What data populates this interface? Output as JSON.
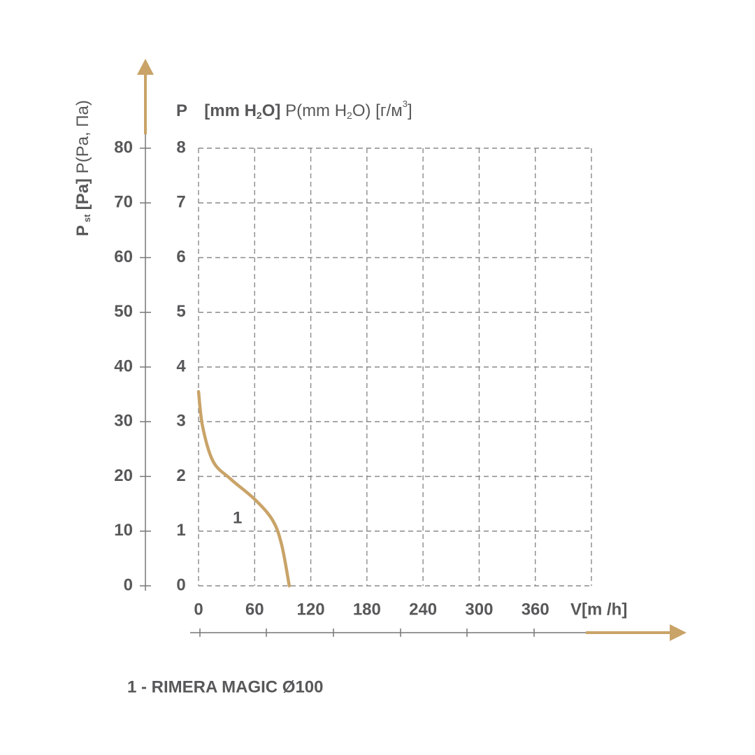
{
  "chart_data": {
    "type": "line",
    "y_label": [
      "P",
      "[mm H",
      "2",
      "O]",
      "P(mm H",
      "2",
      "O) [г/м",
      "3",
      "]"
    ],
    "y2_label": [
      "P",
      "st",
      "[Pa]",
      "P(Pa, Па)"
    ],
    "x_label": "V[m /h]",
    "x": [
      0,
      4.5,
      15.75,
      34.5,
      60.75,
      79.5,
      89,
      97
    ],
    "series": [
      {
        "name": "1 - RIMERA MAGIC Ø100",
        "color": "#c9a368",
        "values": [
          3.55,
          2.9,
          2.27,
          1.95,
          1.57,
          1.19,
          0.74,
          0
        ]
      }
    ],
    "curve_label": "1",
    "xlim": [
      0,
      420
    ],
    "xticks": [
      0,
      60,
      120,
      180,
      240,
      300,
      360
    ],
    "ylim": [
      0,
      8
    ],
    "yticks": [
      0,
      1,
      2,
      3,
      4,
      5,
      6,
      7,
      8
    ],
    "y2lim": [
      0,
      80
    ],
    "y2ticks": [
      0,
      10,
      20,
      30,
      40,
      50,
      60,
      70,
      80
    ],
    "grid": true
  }
}
